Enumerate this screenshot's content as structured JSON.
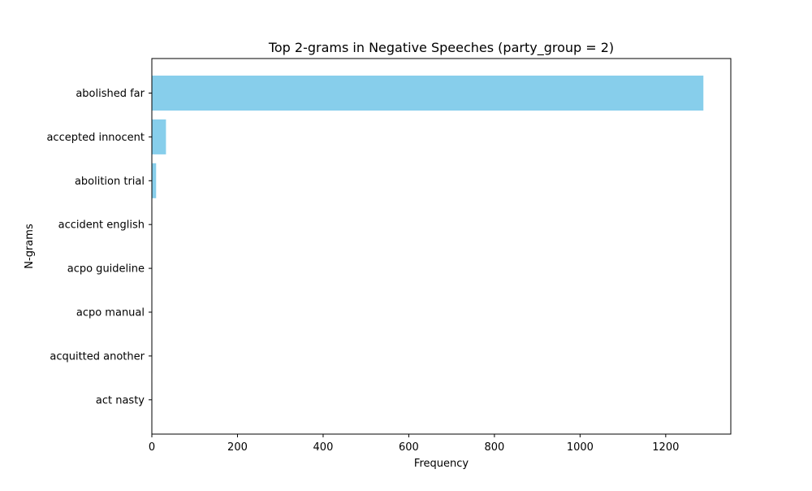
{
  "chart_data": {
    "type": "bar",
    "orientation": "horizontal",
    "title": "Top 2-grams in Negative Speeches (party_group = 2)",
    "xlabel": "Frequency",
    "ylabel": "N-grams",
    "categories": [
      "abolished far",
      "accepted innocent",
      "abolition trial",
      "accident english",
      "acpo guideline",
      "acpo manual",
      "acquitted another",
      "act nasty"
    ],
    "values": [
      1288,
      33,
      10,
      1,
      1,
      1,
      1,
      1
    ],
    "xlim": [
      0,
      1352
    ],
    "xticks": [
      0,
      200,
      400,
      600,
      800,
      1000,
      1200
    ],
    "grid": false,
    "bar_color": "#87ceeb"
  }
}
